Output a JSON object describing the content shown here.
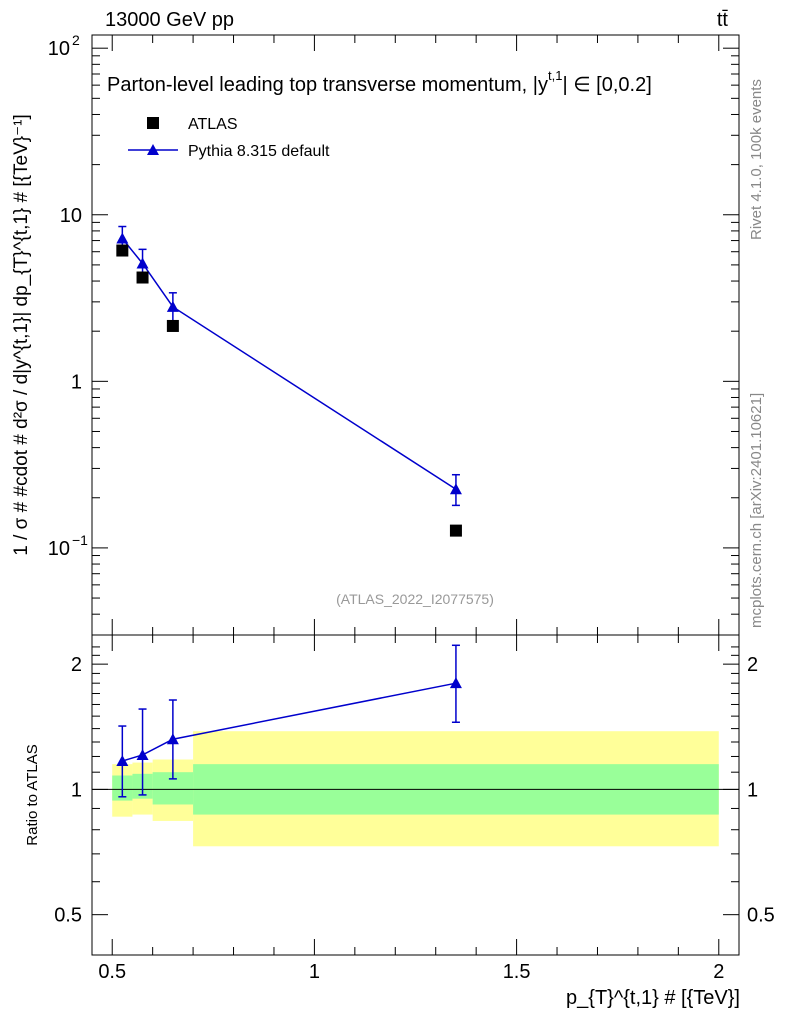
{
  "header": {
    "process": "13000 GeV pp",
    "final_state": "tt̄",
    "side_rivet": "Rivet 4.1.0,  100k events",
    "side_mcplots": "mcplots.cern.ch [arXiv:2401.10621]"
  },
  "colors": {
    "data": "#000000",
    "mc": "#0000cc",
    "band_inner": "#99ff99",
    "band_outer": "#ffff99",
    "watermark": "#999999"
  },
  "chart_data": [
    {
      "type": "scatter",
      "panel": "main",
      "title": "Parton-level leading top transverse momentum, |y",
      "title_sup": "t,1",
      "title_tail": "| ∈ [0,0.2]",
      "ylabel": "1 / σ # #cdot # d²σ / d|y^{t,1}| dp_{T}^{t,1} # [{TeV}⁻¹]",
      "xlim": [
        0.45,
        2.05
      ],
      "ylim": [
        0.03,
        120
      ],
      "yscale": "log",
      "y_ticks": [
        {
          "v": 0.1,
          "label": "10",
          "exp": "−1"
        },
        {
          "v": 1,
          "label": "1",
          "exp": ""
        },
        {
          "v": 10,
          "label": "10",
          "exp": ""
        },
        {
          "v": 100,
          "label": "10",
          "exp": "2"
        }
      ],
      "analysis_id": "(ATLAS_2022_I2077575)",
      "legend": [
        {
          "name": "ATLAS",
          "marker": "square"
        },
        {
          "name": "Pythia 8.315 default",
          "marker": "triangle"
        }
      ],
      "series": [
        {
          "name": "ATLAS",
          "x": [
            0.525,
            0.575,
            0.65,
            1.35
          ],
          "values": [
            6.1,
            4.2,
            2.15,
            0.127
          ]
        },
        {
          "name": "Pythia 8.315 default",
          "x": [
            0.525,
            0.575,
            0.65,
            1.35
          ],
          "values": [
            7.2,
            5.1,
            2.8,
            0.225
          ],
          "err_lo": [
            6.1,
            4.2,
            2.3,
            0.18
          ],
          "err_hi": [
            8.5,
            6.2,
            3.4,
            0.275
          ]
        }
      ]
    },
    {
      "type": "line",
      "panel": "ratio",
      "ylabel": "Ratio to ATLAS",
      "xlabel": "p_{T}^{t,1} # [{TeV}]",
      "xlim": [
        0.45,
        2.05
      ],
      "ylim": [
        0.4,
        2.35
      ],
      "yscale": "log",
      "x_ticks": [
        {
          "v": 0.5,
          "label": "0.5"
        },
        {
          "v": 1,
          "label": "1"
        },
        {
          "v": 1.5,
          "label": "1.5"
        },
        {
          "v": 2,
          "label": "2"
        }
      ],
      "y_ticks": [
        {
          "v": 0.5,
          "label": "0.5"
        },
        {
          "v": 1,
          "label": "1"
        },
        {
          "v": 2,
          "label": "2"
        }
      ],
      "bins": [
        {
          "lo": 0.5,
          "hi": 0.55,
          "inner": [
            0.94,
            1.08
          ],
          "outer": [
            0.86,
            1.15
          ]
        },
        {
          "lo": 0.55,
          "hi": 0.6,
          "inner": [
            0.95,
            1.09
          ],
          "outer": [
            0.87,
            1.16
          ]
        },
        {
          "lo": 0.6,
          "hi": 0.7,
          "inner": [
            0.92,
            1.1
          ],
          "outer": [
            0.84,
            1.18
          ]
        },
        {
          "lo": 0.7,
          "hi": 2.0,
          "inner": [
            0.87,
            1.15
          ],
          "outer": [
            0.73,
            1.38
          ]
        }
      ],
      "series": [
        {
          "name": "Pythia 8.315 default",
          "x": [
            0.525,
            0.575,
            0.65,
            1.35
          ],
          "values": [
            1.17,
            1.21,
            1.32,
            1.8
          ],
          "err_lo": [
            0.96,
            0.97,
            1.06,
            1.45
          ],
          "err_hi": [
            1.42,
            1.56,
            1.64,
            2.22
          ]
        }
      ]
    }
  ]
}
